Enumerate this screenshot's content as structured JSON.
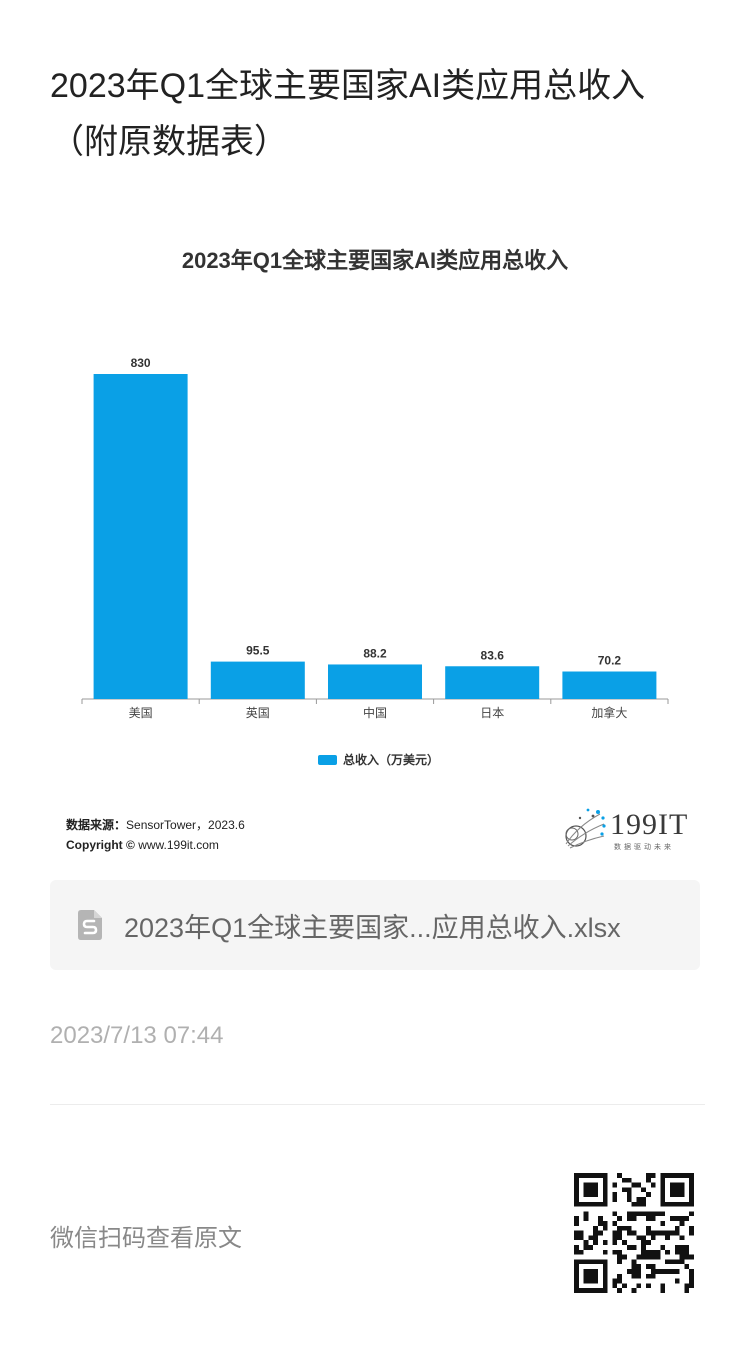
{
  "page": {
    "title": "2023年Q1全球主要国家AI类应用总收入（附原数据表）"
  },
  "chart_data": {
    "type": "bar",
    "title": "2023年Q1全球主要国家AI类应用总收入",
    "categories": [
      "美国",
      "英国",
      "中国",
      "日本",
      "加拿大"
    ],
    "series": [
      {
        "name": "总收入（万美元）",
        "values": [
          830,
          95.5,
          88.2,
          83.6,
          70.2
        ]
      }
    ],
    "value_labels": [
      "830",
      "95.5",
      "88.2",
      "83.6",
      "70.2"
    ],
    "ylim": [
      0,
      830
    ],
    "grid": false,
    "legend_position": "bottom",
    "bar_color": "#0aa0e6"
  },
  "source": {
    "label": "数据来源：",
    "value": "SensorTower，2023.6",
    "copyright_label": "Copyright ©",
    "copyright_value": "www.199it.com"
  },
  "logo": {
    "text": "199IT",
    "tagline": "数据驱动未来"
  },
  "attachment": {
    "icon": "spreadsheet-file-icon",
    "file_name": "2023年Q1全球主要国家...应用总收入.xlsx"
  },
  "meta": {
    "timestamp": "2023/7/13 07:44"
  },
  "footer": {
    "scan_text": "微信扫码查看原文",
    "qr_icon": "qr-code-icon"
  }
}
